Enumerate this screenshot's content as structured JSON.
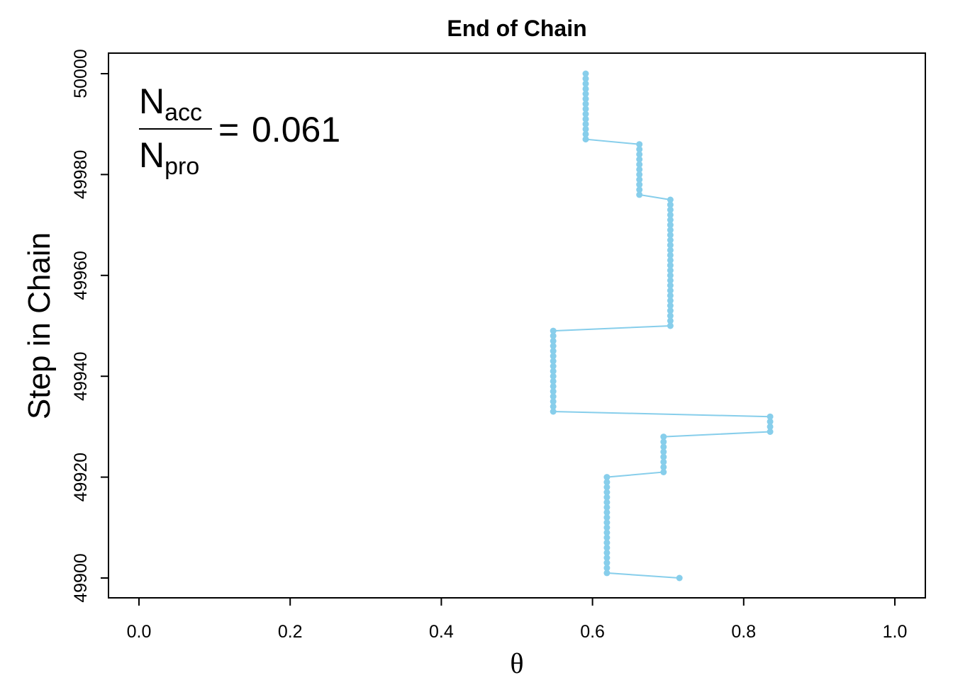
{
  "chart_data": {
    "type": "line",
    "title": "End of Chain",
    "xlabel": "θ",
    "ylabel": "Step in Chain",
    "xlim": [
      0.0,
      1.0
    ],
    "ylim": [
      49900,
      50000
    ],
    "xticks": [
      "0.0",
      "0.2",
      "0.4",
      "0.6",
      "0.8",
      "1.0"
    ],
    "yticks": [
      "49900",
      "49920",
      "49940",
      "49960",
      "49980",
      "50000"
    ],
    "grid": false,
    "legend": "none",
    "color": "#87CEEB",
    "annotation": {
      "numerator": "N",
      "numerator_sub": "acc",
      "denominator": "N",
      "denominator_sub": "pro",
      "equals": "=",
      "value": "0.061"
    },
    "segments": [
      {
        "theta": 0.715,
        "from_step": 49900,
        "to_step": 49900
      },
      {
        "theta": 0.619,
        "from_step": 49901,
        "to_step": 49920
      },
      {
        "theta": 0.694,
        "from_step": 49921,
        "to_step": 49928
      },
      {
        "theta": 0.835,
        "from_step": 49929,
        "to_step": 49932
      },
      {
        "theta": 0.548,
        "from_step": 49933,
        "to_step": 49949
      },
      {
        "theta": 0.703,
        "from_step": 49950,
        "to_step": 49975
      },
      {
        "theta": 0.662,
        "from_step": 49976,
        "to_step": 49986
      },
      {
        "theta": 0.591,
        "from_step": 49987,
        "to_step": 50000
      }
    ]
  }
}
